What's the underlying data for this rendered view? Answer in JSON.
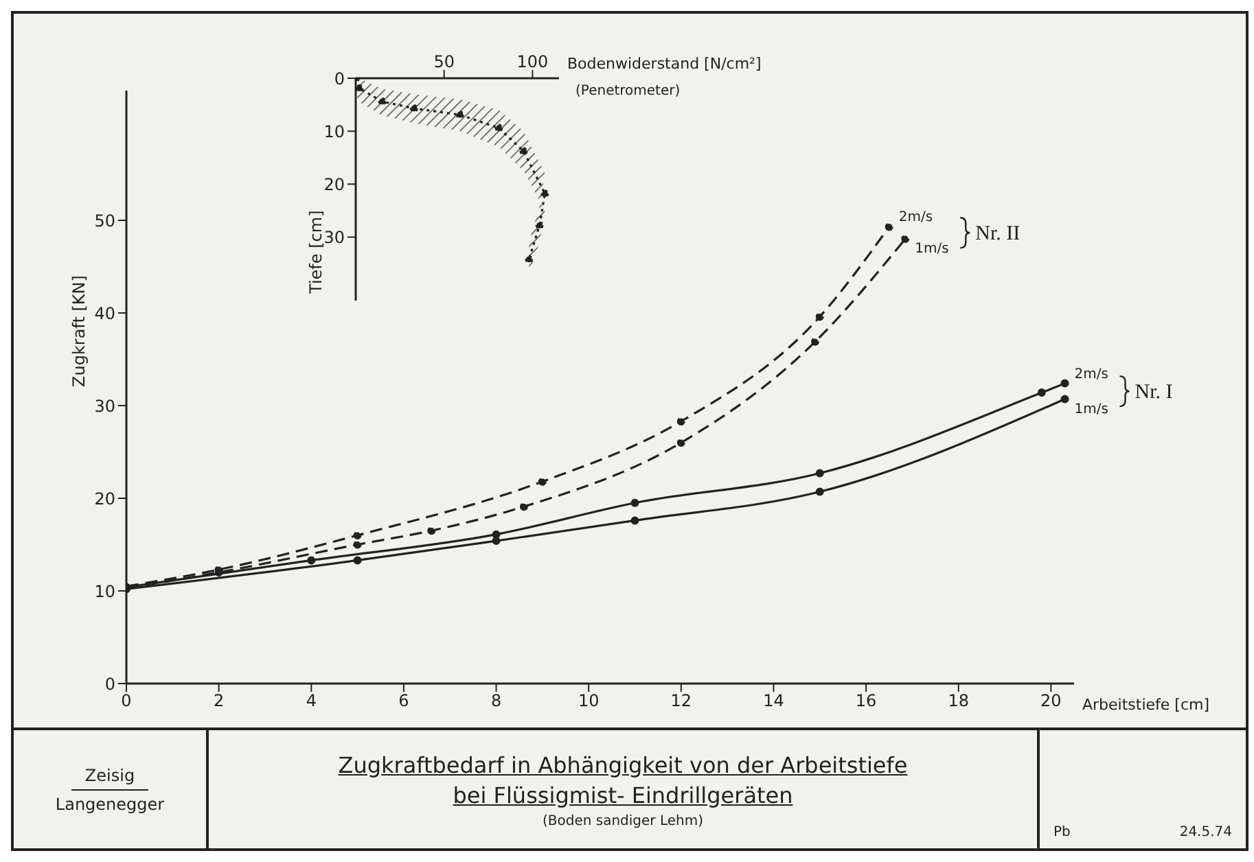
{
  "chart_data": [
    {
      "type": "line",
      "title": "Zugkraftbedarf in Abhängigkeit von der Arbeitstiefe bei Flüssigmist- Eindrillgeräten",
      "subtitle": "(Boden sandiger Lehm)",
      "xlabel": "Arbeitstiefe [cm]",
      "ylabel": "Zugkraft [KN]",
      "xlim": [
        0,
        20.5
      ],
      "ylim": [
        0,
        64
      ],
      "xticks": [
        0,
        2,
        4,
        6,
        8,
        10,
        12,
        14,
        16,
        18,
        20
      ],
      "yticks": [
        0,
        10,
        20,
        30,
        40,
        50
      ],
      "grid": false,
      "marker": "circle",
      "series": [
        {
          "name": "2m/s",
          "color": "#222222",
          "line_style": "dashed",
          "x": [
            0,
            2,
            5,
            9,
            12,
            15,
            16.5
          ],
          "values": [
            10.5,
            12.3,
            16.0,
            21.8,
            28.3,
            39.6,
            49.3
          ]
        },
        {
          "name": "1m/s",
          "color": "#222222",
          "line_style": "dashed",
          "x": [
            0,
            2,
            5,
            6.6,
            8.6,
            12,
            14.9,
            16.85
          ],
          "values": [
            10.3,
            12.0,
            15.0,
            16.5,
            19.1,
            26.0,
            36.9,
            48.0
          ]
        },
        {
          "name": "2m/s",
          "color": "#222222",
          "line_style": "solid",
          "x": [
            0,
            4,
            8,
            11,
            15,
            19.8,
            20.3
          ],
          "values": [
            10.4,
            13.3,
            16.1,
            19.5,
            22.7,
            31.4,
            32.4
          ]
        },
        {
          "name": "1m/s",
          "color": "#222222",
          "line_style": "solid",
          "x": [
            0,
            5,
            8,
            11,
            15,
            20.3
          ],
          "values": [
            10.2,
            13.3,
            15.4,
            17.6,
            20.7,
            30.7
          ]
        }
      ],
      "annotations": [
        "Nr. II",
        "Nr. I",
        "Zeisig",
        "Langenegger",
        "Pb",
        "24.5.74"
      ]
    },
    {
      "type": "line",
      "xlabel": "Bodenwiderstand [N/cm²]",
      "ylabel": "Tiefe [cm]",
      "xlim": [
        0,
        115
      ],
      "ylim": [
        42,
        0
      ],
      "xticks": [
        50,
        100
      ],
      "yticks": [
        0,
        10,
        20,
        30
      ],
      "marker": "circle",
      "series": [
        {
          "color": "#222222",
          "line_style": "dotted",
          "x": [
            0,
            2,
            15,
            33,
            59,
            81,
            95,
            107,
            104,
            98
          ],
          "values": [
            0,
            1.9,
            4.4,
            5.7,
            6.9,
            9.4,
            13.8,
            21.8,
            27.8,
            34.2
          ],
          "lower": [
            0,
            0,
            2,
            3,
            4,
            6,
            10,
            18,
            24,
            31
          ],
          "upper": [
            3,
            4.5,
            7,
            8.5,
            10,
            13,
            17.5,
            25,
            31,
            37
          ]
        }
      ],
      "annotations": [
        "(Penetrometer)"
      ]
    }
  ]
}
